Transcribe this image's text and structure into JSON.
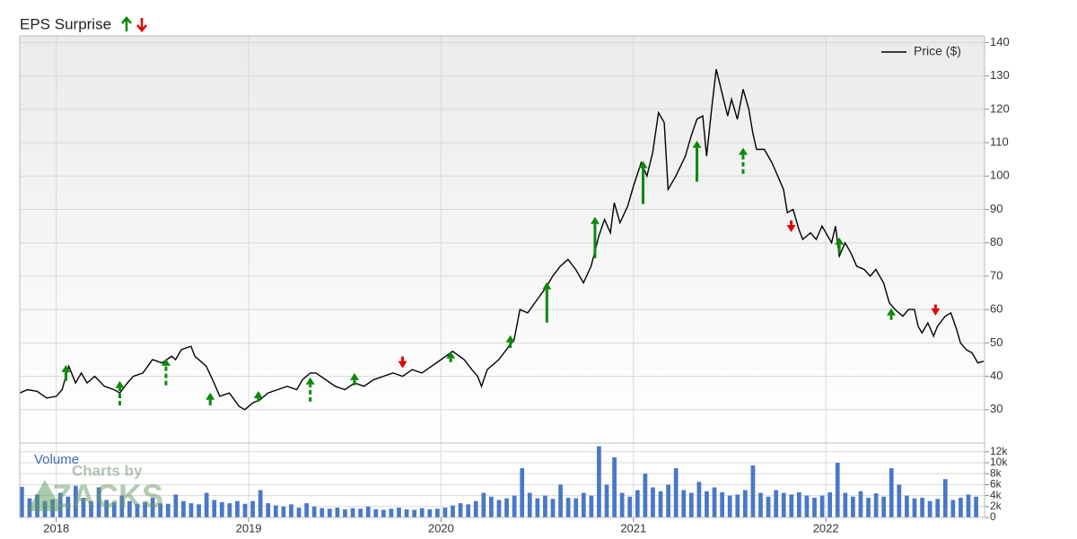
{
  "chart_data": [
    {
      "type": "line",
      "title": "EPS Surprise",
      "x": [
        2017.81,
        2017.85,
        2017.9,
        2017.95,
        2018.0,
        2018.03,
        2018.05,
        2018.065,
        2018.1,
        2018.13,
        2018.16,
        2018.2,
        2018.25,
        2018.3,
        2018.33,
        2018.37,
        2018.4,
        2018.45,
        2018.5,
        2018.55,
        2018.6,
        2018.62,
        2018.65,
        2018.7,
        2018.72,
        2018.78,
        2018.82,
        2018.85,
        2018.9,
        2018.95,
        2018.98,
        2019.02,
        2019.06,
        2019.1,
        2019.15,
        2019.2,
        2019.25,
        2019.28,
        2019.32,
        2019.35,
        2019.4,
        2019.45,
        2019.5,
        2019.55,
        2019.6,
        2019.65,
        2019.7,
        2019.75,
        2019.8,
        2019.85,
        2019.9,
        2019.95,
        2020.0,
        2020.06,
        2020.12,
        2020.16,
        2020.19,
        2020.21,
        2020.24,
        2020.3,
        2020.34,
        2020.38,
        2020.41,
        2020.45,
        2020.5,
        2020.55,
        2020.58,
        2020.62,
        2020.66,
        2020.7,
        2020.74,
        2020.78,
        2020.82,
        2020.85,
        2020.88,
        2020.9,
        2020.93,
        2020.97,
        2021.0,
        2021.04,
        2021.07,
        2021.1,
        2021.13,
        2021.16,
        2021.18,
        2021.22,
        2021.27,
        2021.3,
        2021.33,
        2021.36,
        2021.38,
        2021.41,
        2021.43,
        2021.46,
        2021.49,
        2021.51,
        2021.54,
        2021.57,
        2021.6,
        2021.62,
        2021.64,
        2021.68,
        2021.72,
        2021.75,
        2021.78,
        2021.8,
        2021.83,
        2021.86,
        2021.88,
        2021.92,
        2021.95,
        2021.98,
        2022.0,
        2022.03,
        2022.05,
        2022.07,
        2022.1,
        2022.13,
        2022.16,
        2022.2,
        2022.23,
        2022.26,
        2022.3,
        2022.33,
        2022.36,
        2022.4,
        2022.43,
        2022.46,
        2022.48,
        2022.5,
        2022.53,
        2022.56,
        2022.58,
        2022.62,
        2022.65,
        2022.68,
        2022.7,
        2022.73,
        2022.76,
        2022.79,
        2022.82
      ],
      "series": [
        {
          "name": "Price ($)",
          "color": "#000000",
          "values": [
            35,
            36,
            35.5,
            33.5,
            34,
            36,
            40,
            43,
            38,
            41,
            38,
            40,
            37,
            36,
            35,
            38,
            40,
            41,
            45,
            44,
            46,
            45,
            48,
            49,
            46,
            43,
            38,
            34,
            35,
            31,
            30,
            32,
            33,
            35,
            36,
            37,
            36,
            39,
            41,
            41,
            39,
            37,
            36,
            38,
            37,
            39,
            40,
            41,
            40,
            42,
            41,
            43,
            45,
            47.5,
            45,
            42,
            40,
            37,
            42,
            45,
            48,
            51,
            60,
            59,
            63,
            67,
            70,
            73,
            75,
            72,
            68,
            73,
            82,
            87,
            83,
            92,
            86,
            91,
            97,
            104,
            100,
            107,
            119,
            116,
            96,
            100,
            106,
            112,
            117,
            118,
            106,
            122,
            132,
            125,
            118,
            123,
            117,
            126,
            120,
            113,
            108,
            108,
            104,
            100,
            96,
            89,
            90,
            84,
            81,
            83,
            81,
            85,
            83,
            80,
            85,
            76,
            80,
            77,
            73,
            72,
            70,
            72,
            68,
            62,
            60,
            58,
            60,
            60,
            55,
            53,
            56,
            52,
            55,
            58,
            59,
            54,
            50,
            48,
            47,
            44,
            44.5
          ]
        }
      ],
      "xlim": [
        2017.81,
        2022.825
      ],
      "xticks": [
        2018,
        2019,
        2020,
        2021,
        2022
      ],
      "ylim": [
        20,
        142
      ],
      "yticks": [
        30,
        40,
        50,
        60,
        70,
        80,
        90,
        100,
        110,
        120,
        130,
        140
      ],
      "grid": true,
      "legend": "upper right",
      "annotations": [
        {
          "x": 2018.05,
          "from": 38.6,
          "to": 43.4,
          "color": "#0a8a0a",
          "dashed": false
        },
        {
          "x": 2018.33,
          "from": 31.3,
          "to": 38.6,
          "color": "#0a8a0a",
          "dashed": true
        },
        {
          "x": 2018.57,
          "from": 37.3,
          "to": 45.3,
          "color": "#0a8a0a",
          "dashed": true
        },
        {
          "x": 2018.8,
          "from": 31.3,
          "to": 35.1,
          "color": "#0a8a0a",
          "dashed": false
        },
        {
          "x": 2019.05,
          "from": 32.4,
          "to": 35.6,
          "color": "#0a8a0a",
          "dashed": false
        },
        {
          "x": 2019.32,
          "from": 32.4,
          "to": 39.7,
          "color": "#0a8a0a",
          "dashed": true
        },
        {
          "x": 2019.55,
          "from": 37.3,
          "to": 41,
          "color": "#0a8a0a",
          "dashed": false
        },
        {
          "x": 2019.8,
          "from": 45.9,
          "to": 42.4,
          "color": "#e00000",
          "dashed": false
        },
        {
          "x": 2020.05,
          "from": 44.2,
          "to": 47.5,
          "color": "#0a8a0a",
          "dashed": false
        },
        {
          "x": 2020.36,
          "from": 48.5,
          "to": 52.3,
          "color": "#0a8a0a",
          "dashed": false
        },
        {
          "x": 2020.55,
          "from": 56.1,
          "to": 68.2,
          "color": "#0a8a0a",
          "dashed": false
        },
        {
          "x": 2020.8,
          "from": 75.4,
          "to": 87.8,
          "color": "#0a8a0a",
          "dashed": false
        },
        {
          "x": 2021.05,
          "from": 91.6,
          "to": 104.5,
          "color": "#0a8a0a",
          "dashed": false
        },
        {
          "x": 2021.33,
          "from": 98.3,
          "to": 110.6,
          "color": "#0a8a0a",
          "dashed": false
        },
        {
          "x": 2021.57,
          "from": 100.7,
          "to": 108.5,
          "color": "#0a8a0a",
          "dashed": true
        },
        {
          "x": 2021.82,
          "from": 86.7,
          "to": 83.2,
          "color": "#e00000",
          "dashed": false
        },
        {
          "x": 2022.07,
          "from": 76.8,
          "to": 81.6,
          "color": "#0a8a0a",
          "dashed": false
        },
        {
          "x": 2022.34,
          "from": 56.9,
          "to": 60.4,
          "color": "#0a8a0a",
          "dashed": false
        },
        {
          "x": 2022.57,
          "from": 61.5,
          "to": 58.2,
          "color": "#e00000",
          "dashed": false
        }
      ]
    },
    {
      "type": "bar",
      "ylabel": "Volume",
      "color": "#4a78c8",
      "x": [
        2017.81,
        2017.85,
        2017.89,
        2017.93,
        2017.97,
        2018.01,
        2018.05,
        2018.09,
        2018.13,
        2018.17,
        2018.21,
        2018.25,
        2018.29,
        2018.33,
        2018.37,
        2018.41,
        2018.45,
        2018.49,
        2018.53,
        2018.57,
        2018.61,
        2018.65,
        2018.69,
        2018.73,
        2018.77,
        2018.81,
        2018.85,
        2018.89,
        2018.93,
        2018.97,
        2019.01,
        2019.05,
        2019.09,
        2019.13,
        2019.17,
        2019.21,
        2019.25,
        2019.29,
        2019.33,
        2019.37,
        2019.41,
        2019.45,
        2019.49,
        2019.53,
        2019.57,
        2019.61,
        2019.65,
        2019.69,
        2019.73,
        2019.77,
        2019.81,
        2019.85,
        2019.89,
        2019.93,
        2019.97,
        2020.01,
        2020.05,
        2020.09,
        2020.13,
        2020.17,
        2020.21,
        2020.25,
        2020.29,
        2020.33,
        2020.37,
        2020.41,
        2020.45,
        2020.49,
        2020.53,
        2020.57,
        2020.61,
        2020.65,
        2020.69,
        2020.73,
        2020.77,
        2020.81,
        2020.85,
        2020.89,
        2020.93,
        2020.97,
        2021.01,
        2021.05,
        2021.09,
        2021.13,
        2021.17,
        2021.21,
        2021.25,
        2021.29,
        2021.33,
        2021.37,
        2021.41,
        2021.45,
        2021.49,
        2021.53,
        2021.57,
        2021.61,
        2021.65,
        2021.69,
        2021.73,
        2021.77,
        2021.81,
        2021.85,
        2021.89,
        2021.93,
        2021.97,
        2022.01,
        2022.05,
        2022.09,
        2022.13,
        2022.17,
        2022.21,
        2022.25,
        2022.29,
        2022.33,
        2022.37,
        2022.41,
        2022.45,
        2022.49,
        2022.53,
        2022.57,
        2022.61,
        2022.65,
        2022.69,
        2022.73,
        2022.77
      ],
      "values": [
        5600,
        3500,
        4200,
        3000,
        3300,
        4500,
        3800,
        5800,
        3600,
        3000,
        5500,
        3200,
        2800,
        4000,
        3000,
        2500,
        2800,
        3600,
        2600,
        2500,
        4200,
        3000,
        2600,
        2400,
        4500,
        3200,
        2800,
        2600,
        3000,
        2500,
        3000,
        5000,
        2600,
        2200,
        2000,
        2400,
        1800,
        2600,
        2000,
        1700,
        1600,
        1800,
        1500,
        1700,
        1600,
        2000,
        1500,
        1400,
        1600,
        1800,
        1500,
        1400,
        1700,
        1500,
        1600,
        1800,
        2200,
        2600,
        2400,
        3000,
        4500,
        3800,
        3200,
        3500,
        4000,
        9000,
        4500,
        3500,
        4000,
        3400,
        6000,
        3600,
        3500,
        4500,
        4000,
        13000,
        6000,
        11000,
        4500,
        3800,
        5000,
        8000,
        5500,
        4800,
        6000,
        9000,
        5000,
        4500,
        6500,
        4800,
        5500,
        4600,
        4000,
        4200,
        5000,
        9500,
        4500,
        3800,
        5000,
        4500,
        4200,
        4600,
        4000,
        3600,
        4000,
        4600,
        10000,
        4500,
        3800,
        4800,
        3600,
        4400,
        3800,
        9000,
        6000,
        4000,
        3500,
        3600,
        3000,
        3400,
        7000,
        3200,
        3600,
        4200,
        3800
      ],
      "xlim": [
        2017.81,
        2022.825
      ],
      "xticks": [
        2018,
        2019,
        2020,
        2021,
        2022
      ],
      "ylim": [
        0,
        13600
      ],
      "yticks": [
        0,
        {
          "value": 2000,
          "label": "2k"
        },
        {
          "value": 4000,
          "label": "4k"
        },
        {
          "value": 6000,
          "label": "6k"
        },
        {
          "value": 8000,
          "label": "8k"
        },
        {
          "value": 10000,
          "label": "10k"
        },
        {
          "value": 12000,
          "label": "12k"
        }
      ],
      "grid": true
    }
  ],
  "watermark": {
    "line1": "Charts by",
    "line2": "ZACKS"
  }
}
